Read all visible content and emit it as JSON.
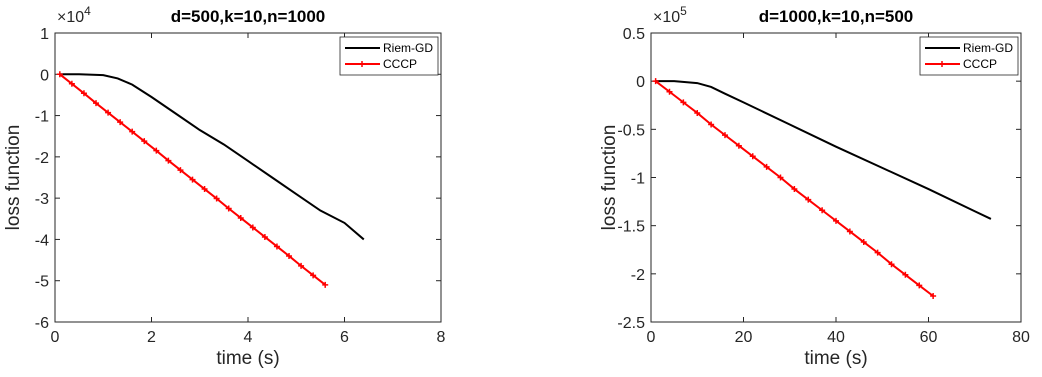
{
  "chart_data": [
    {
      "type": "line",
      "title": "d=500,k=10,n=1000",
      "x_label": "time (s)",
      "y_label": "loss function",
      "y_multiplier": {
        "base": "×10",
        "exponent": "4"
      },
      "xlim": [
        0,
        8
      ],
      "xticks": [
        0,
        2,
        4,
        6,
        8
      ],
      "ylim": [
        -6,
        1
      ],
      "yticks": [
        -6,
        -5,
        -4,
        -3,
        -2,
        -1,
        0,
        1
      ],
      "legend": "upper right",
      "series": [
        {
          "name": "Riem-GD",
          "color": "#000000",
          "x": [
            0.1,
            0.5,
            1,
            1.3,
            1.6,
            2,
            2.5,
            3,
            3.5,
            4,
            4.5,
            5,
            5.5,
            6,
            6.4
          ],
          "values": [
            0,
            0,
            -0.02,
            -0.1,
            -0.25,
            -0.55,
            -0.95,
            -1.35,
            -1.7,
            -2.1,
            -2.5,
            -2.9,
            -3.3,
            -3.6,
            -4.0
          ]
        },
        {
          "name": "CCCP",
          "color": "#ff0000",
          "marker": "+",
          "x": [
            0.1,
            0.35,
            0.6,
            0.85,
            1.1,
            1.35,
            1.6,
            1.85,
            2.1,
            2.35,
            2.6,
            2.85,
            3.1,
            3.35,
            3.6,
            3.85,
            4.1,
            4.35,
            4.6,
            4.85,
            5.1,
            5.35,
            5.6
          ],
          "values": [
            0,
            -0.23,
            -0.46,
            -0.7,
            -0.93,
            -1.16,
            -1.39,
            -1.62,
            -1.85,
            -2.09,
            -2.32,
            -2.55,
            -2.78,
            -3.01,
            -3.25,
            -3.48,
            -3.71,
            -3.94,
            -4.17,
            -4.4,
            -4.64,
            -4.87,
            -5.1
          ]
        }
      ]
    },
    {
      "type": "line",
      "title": "d=1000,k=10,n=500",
      "x_label": "time (s)",
      "y_label": "loss function",
      "y_multiplier": {
        "base": "×10",
        "exponent": "5"
      },
      "xlim": [
        0,
        80
      ],
      "xticks": [
        0,
        20,
        40,
        60,
        80
      ],
      "ylim": [
        -2.5,
        0.5
      ],
      "yticks": [
        -2.5,
        -2,
        -1.5,
        -1,
        -0.5,
        0,
        0.5
      ],
      "legend": "upper right",
      "series": [
        {
          "name": "Riem-GD",
          "color": "#000000",
          "x": [
            1,
            5,
            10,
            13,
            16,
            20,
            30,
            40,
            50,
            60,
            70,
            73.5
          ],
          "values": [
            0,
            0,
            -0.02,
            -0.06,
            -0.13,
            -0.22,
            -0.45,
            -0.68,
            -0.9,
            -1.12,
            -1.35,
            -1.43
          ]
        },
        {
          "name": "CCCP",
          "color": "#ff0000",
          "marker": "+",
          "x": [
            1,
            4,
            7,
            10,
            13,
            16,
            19,
            22,
            25,
            28,
            31,
            34,
            37,
            40,
            43,
            46,
            49,
            52,
            55,
            58,
            61
          ],
          "values": [
            0,
            -0.11,
            -0.22,
            -0.33,
            -0.45,
            -0.56,
            -0.67,
            -0.78,
            -0.89,
            -1.0,
            -1.12,
            -1.23,
            -1.34,
            -1.45,
            -1.56,
            -1.67,
            -1.78,
            -1.9,
            -2.01,
            -2.12,
            -2.23
          ]
        }
      ]
    }
  ]
}
